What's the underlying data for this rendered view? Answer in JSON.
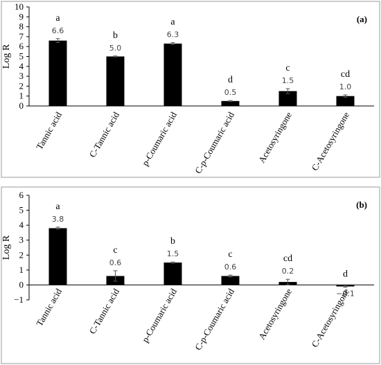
{
  "chart_data": [
    {
      "type": "bar",
      "panel_label": "(a)",
      "ylabel": "Log R",
      "ylim": [
        0,
        10
      ],
      "yticks": [
        0,
        1,
        2,
        3,
        4,
        5,
        6,
        7,
        8,
        9,
        10
      ],
      "categories": [
        "Tannic acid",
        "C-Tannic acid",
        "p-Coumaric acid",
        "C-p-Coumaric acid",
        "Acetosyringone",
        "C-Acetosyringone"
      ],
      "values": [
        6.6,
        5.0,
        6.3,
        0.5,
        1.5,
        1.0
      ],
      "value_labels": [
        "6.6",
        "5.0",
        "6.3",
        "0.5",
        "1.5",
        "1.0"
      ],
      "errors": [
        0.2,
        0.05,
        0.1,
        0.05,
        0.25,
        0.12
      ],
      "significance": [
        "a",
        "b",
        "a",
        "d",
        "c",
        "cd"
      ]
    },
    {
      "type": "bar",
      "panel_label": "(b)",
      "ylabel": "Log R",
      "ylim": [
        -1,
        6
      ],
      "yticks": [
        -1,
        0,
        1,
        2,
        3,
        4,
        5,
        6
      ],
      "ytick_labels": [
        "−1",
        "0",
        "1",
        "2",
        "3",
        "4",
        "5",
        "6"
      ],
      "categories": [
        "Tannic acid",
        "C-Tannic acid",
        "p-Coumaric acid",
        "C-p-Coumaric acid",
        "Acetosyringone",
        "C-Acetosyringone"
      ],
      "values": [
        3.8,
        0.6,
        1.5,
        0.6,
        0.2,
        -0.1
      ],
      "value_labels": [
        "3.8",
        "0.6",
        "1.5",
        "0.6",
        "0.2",
        "−0.1"
      ],
      "errors": [
        0.07,
        0.35,
        0.04,
        0.06,
        0.18,
        0.05
      ],
      "significance": [
        "a",
        "c",
        "b",
        "c",
        "cd",
        "d"
      ]
    }
  ],
  "colors": {
    "bar": "#000000",
    "error": "#555555",
    "axis": "#000000",
    "frame": "#999999",
    "value_label": "#444444"
  }
}
